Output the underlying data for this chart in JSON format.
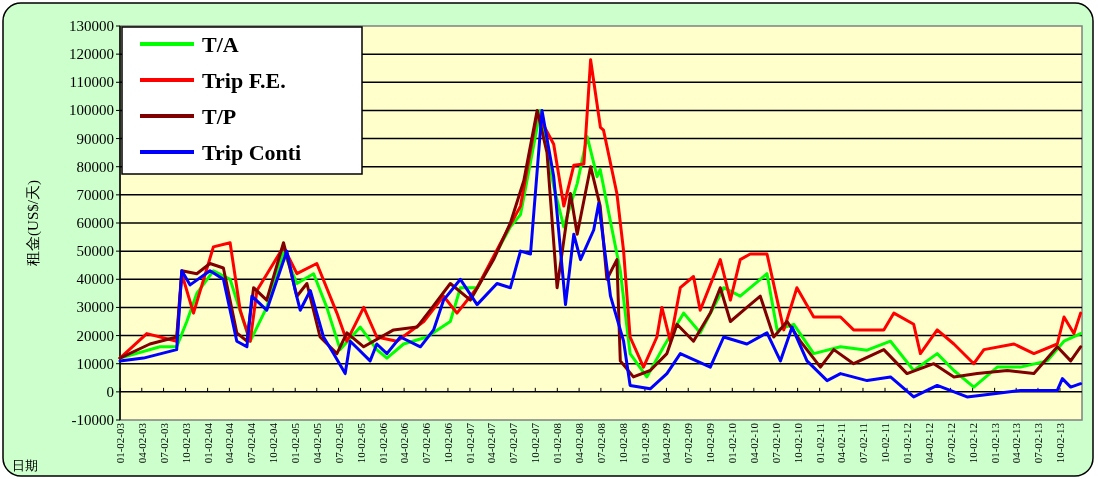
{
  "chart_data": {
    "type": "line",
    "ylabel": "租金(US$/天)",
    "xlabel": "日期",
    "xlim": [
      "2003-01-01",
      "2014-01-02"
    ],
    "xticks": [
      {
        "value": "2003-01-02",
        "label": "01-02-03"
      },
      {
        "value": "2003-04-02",
        "label": "04-02-03"
      },
      {
        "value": "2003-07-02",
        "label": "07-02-03"
      },
      {
        "value": "2003-10-02",
        "label": "10-02-03"
      },
      {
        "value": "2004-01-02",
        "label": "01-02-04"
      },
      {
        "value": "2004-04-02",
        "label": "04-02-04"
      },
      {
        "value": "2004-07-02",
        "label": "07-02-04"
      },
      {
        "value": "2004-10-02",
        "label": "10-02-04"
      },
      {
        "value": "2005-01-02",
        "label": "01-02-05"
      },
      {
        "value": "2005-04-02",
        "label": "04-02-05"
      },
      {
        "value": "2005-07-02",
        "label": "07-02-05"
      },
      {
        "value": "2005-10-02",
        "label": "10-02-05"
      },
      {
        "value": "2006-01-02",
        "label": "01-02-06"
      },
      {
        "value": "2006-04-02",
        "label": "04-02-06"
      },
      {
        "value": "2006-07-02",
        "label": "07-02-06"
      },
      {
        "value": "2006-10-02",
        "label": "10-02-06"
      },
      {
        "value": "2007-01-02",
        "label": "01-02-07"
      },
      {
        "value": "2007-04-02",
        "label": "04-02-07"
      },
      {
        "value": "2007-07-02",
        "label": "07-02-07"
      },
      {
        "value": "2007-10-02",
        "label": "10-02-07"
      },
      {
        "value": "2008-01-02",
        "label": "01-02-08"
      },
      {
        "value": "2008-04-02",
        "label": "04-02-08"
      },
      {
        "value": "2008-07-02",
        "label": "07-02-08"
      },
      {
        "value": "2008-10-02",
        "label": "10-02-08"
      },
      {
        "value": "2009-01-02",
        "label": "01-02-09"
      },
      {
        "value": "2009-04-02",
        "label": "04-02-09"
      },
      {
        "value": "2009-07-02",
        "label": "07-02-09"
      },
      {
        "value": "2009-10-02",
        "label": "10-02-09"
      },
      {
        "value": "2010-01-02",
        "label": "01-02-10"
      },
      {
        "value": "2010-04-02",
        "label": "04-02-10"
      },
      {
        "value": "2010-07-02",
        "label": "07-02-10"
      },
      {
        "value": "2010-10-02",
        "label": "10-02-10"
      },
      {
        "value": "2011-01-02",
        "label": "01-02-11"
      },
      {
        "value": "2011-04-02",
        "label": "04-02-11"
      },
      {
        "value": "2011-07-02",
        "label": "07-02-11"
      },
      {
        "value": "2011-10-02",
        "label": "10-02-11"
      },
      {
        "value": "2012-01-02",
        "label": "01-02-12"
      },
      {
        "value": "2012-04-02",
        "label": "04-02-12"
      },
      {
        "value": "2012-07-02",
        "label": "07-02-12"
      },
      {
        "value": "2012-10-02",
        "label": "10-02-12"
      },
      {
        "value": "2013-01-02",
        "label": "01-02-13"
      },
      {
        "value": "2013-04-02",
        "label": "04-02-13"
      },
      {
        "value": "2013-07-02",
        "label": "07-02-13"
      },
      {
        "value": "2013-10-02",
        "label": "10-02-13"
      }
    ],
    "ylim": [
      -10000,
      130000
    ],
    "yticks": [
      -10000,
      0,
      10000,
      20000,
      30000,
      40000,
      50000,
      60000,
      70000,
      80000,
      90000,
      100000,
      110000,
      120000,
      130000
    ],
    "grid": "y",
    "legend": "top left",
    "marker": "none",
    "line_style": "solid",
    "series": [
      {
        "name": "T/A",
        "color": "#00ff00",
        "x": [
          "2003-01-01",
          "2003-06-17",
          "2003-08-26",
          "2003-10-07",
          "2003-11-18",
          "2004-01-26",
          "2004-04-05",
          "2004-05-31",
          "2004-06-28",
          "2004-09-05",
          "2004-11-14",
          "2005-01-09",
          "2005-03-20",
          "2005-05-14",
          "2005-07-09",
          "2005-10-01",
          "2005-12-09",
          "2006-01-20",
          "2006-03-31",
          "2006-07-06",
          "2006-10-12",
          "2006-11-23",
          "2007-02-01",
          "2007-06-20",
          "2007-08-01",
          "2007-10-23",
          "2007-12-18",
          "2008-01-29",
          "2008-03-25",
          "2008-05-06",
          "2008-06-16",
          "2008-06-29",
          "2008-08-10",
          "2008-09-21",
          "2008-11-01",
          "2009-01-10",
          "2009-03-21",
          "2009-06-13",
          "2009-08-21",
          "2009-11-27",
          "2010-02-04",
          "2010-04-29",
          "2010-05-27",
          "2010-07-08",
          "2010-09-16",
          "2010-12-08",
          "2011-03-30",
          "2011-07-19",
          "2011-10-25",
          "2012-01-30",
          "2012-05-07",
          "2012-07-16",
          "2012-10-07",
          "2013-01-13",
          "2013-04-20",
          "2013-08-10",
          "2013-10-19",
          "2013-12-27"
        ],
        "values": [
          12000,
          16000,
          16000,
          25000,
          35000,
          43000,
          40000,
          25000,
          18000,
          30000,
          50000,
          38500,
          42000,
          30000,
          15000,
          23000,
          15000,
          12000,
          17000,
          19500,
          25000,
          37000,
          37000,
          58600,
          63000,
          100000,
          73000,
          58600,
          74000,
          90700,
          76500,
          79000,
          61000,
          43000,
          13600,
          5300,
          16000,
          28000,
          21000,
          37000,
          34000,
          40000,
          42000,
          22000,
          24000,
          13600,
          16000,
          14800,
          18000,
          7600,
          13600,
          7600,
          1700,
          8800,
          8800,
          11000,
          18000,
          20700
        ]
      },
      {
        "name": "Trip F.E.",
        "color": "#ff0000",
        "x": [
          "2003-01-01",
          "2003-04-23",
          "2003-08-26",
          "2003-09-16",
          "2003-11-04",
          "2004-01-26",
          "2004-04-05",
          "2004-05-17",
          "2004-06-28",
          "2004-07-26",
          "2004-11-14",
          "2005-01-09",
          "2005-04-02",
          "2005-06-25",
          "2005-08-06",
          "2005-10-15",
          "2005-12-09",
          "2006-03-03",
          "2006-06-23",
          "2006-09-14",
          "2006-11-09",
          "2007-02-01",
          "2007-05-23",
          "2007-08-01",
          "2007-10-10",
          "2007-12-18",
          "2008-01-29",
          "2008-03-11",
          "2008-04-22",
          "2008-05-20",
          "2008-06-30",
          "2008-07-13",
          "2008-09-07",
          "2008-10-05",
          "2008-11-01",
          "2008-12-27",
          "2009-02-21",
          "2009-03-14",
          "2009-04-18",
          "2009-05-30",
          "2009-07-24",
          "2009-08-21",
          "2009-11-13",
          "2009-12-25",
          "2010-02-04",
          "2010-03-18",
          "2010-05-27",
          "2010-08-05",
          "2010-09-29",
          "2010-12-08",
          "2011-03-30",
          "2011-05-24",
          "2011-09-27",
          "2011-11-08",
          "2012-01-30",
          "2012-02-27",
          "2012-05-07",
          "2012-07-16",
          "2012-10-07",
          "2012-11-18",
          "2013-03-24",
          "2013-06-15",
          "2013-09-21",
          "2013-10-19",
          "2013-11-29",
          "2013-12-27"
        ],
        "values": [
          12000,
          20700,
          18000,
          42000,
          28000,
          51500,
          53000,
          29000,
          18000,
          36000,
          51500,
          42000,
          45600,
          28000,
          18000,
          30000,
          19500,
          18000,
          25000,
          34000,
          28000,
          37000,
          55000,
          66000,
          99000,
          88000,
          66000,
          80500,
          81000,
          118000,
          94000,
          93000,
          70500,
          50000,
          19500,
          8800,
          19500,
          30000,
          18000,
          37000,
          41000,
          29000,
          47000,
          32600,
          47000,
          49000,
          49000,
          22000,
          37000,
          26600,
          26600,
          22000,
          22000,
          28000,
          24000,
          13600,
          22000,
          17000,
          10000,
          15000,
          17000,
          13600,
          17000,
          26600,
          20700,
          28000
        ]
      },
      {
        "name": "T/P",
        "color": "#800000",
        "x": [
          "2003-01-01",
          "2003-05-06",
          "2003-08-26",
          "2003-09-16",
          "2003-11-18",
          "2004-01-12",
          "2004-03-08",
          "2004-05-03",
          "2004-06-14",
          "2004-07-12",
          "2004-09-05",
          "2004-11-14",
          "2005-01-09",
          "2005-02-20",
          "2005-04-16",
          "2005-06-25",
          "2005-08-06",
          "2005-10-15",
          "2006-02-17",
          "2006-05-26",
          "2006-07-20",
          "2006-10-12",
          "2007-01-04",
          "2007-04-11",
          "2007-06-20",
          "2007-08-15",
          "2007-10-10",
          "2007-11-20",
          "2008-01-01",
          "2008-02-26",
          "2008-03-25",
          "2008-05-20",
          "2008-06-29",
          "2008-07-27",
          "2008-09-07",
          "2008-09-21",
          "2008-11-15",
          "2009-01-24",
          "2009-04-04",
          "2009-05-16",
          "2009-07-24",
          "2009-10-02",
          "2009-11-13",
          "2009-12-25",
          "2010-03-04",
          "2010-04-29",
          "2010-06-24",
          "2010-08-19",
          "2010-10-13",
          "2011-01-05",
          "2011-03-02",
          "2011-05-24",
          "2011-09-27",
          "2012-01-02",
          "2012-04-23",
          "2012-07-16",
          "2012-10-21",
          "2013-02-24",
          "2013-06-15",
          "2013-09-21",
          "2013-11-16",
          "2013-12-27"
        ],
        "values": [
          12000,
          17000,
          19500,
          43000,
          42000,
          45600,
          44000,
          21000,
          18000,
          37000,
          32600,
          53000,
          34000,
          38500,
          19500,
          13600,
          21000,
          16000,
          22000,
          23000,
          29000,
          38500,
          32600,
          47000,
          60000,
          75000,
          100000,
          85000,
          37000,
          70500,
          56000,
          80000,
          66000,
          40000,
          47000,
          11000,
          5300,
          7600,
          13600,
          24000,
          18000,
          28000,
          37000,
          25000,
          30000,
          34000,
          19500,
          25000,
          18000,
          8800,
          15000,
          10000,
          15000,
          6500,
          10000,
          5300,
          6500,
          7600,
          6500,
          16000,
          11000,
          16000
        ]
      },
      {
        "name": "Trip Conti",
        "color": "#0000ff",
        "x": [
          "2003-01-01",
          "2003-04-09",
          "2003-08-26",
          "2003-09-16",
          "2003-10-21",
          "2004-01-12",
          "2004-03-08",
          "2004-05-03",
          "2004-06-14",
          "2004-07-05",
          "2004-09-05",
          "2004-11-28",
          "2005-01-02",
          "2005-01-23",
          "2005-03-06",
          "2005-04-30",
          "2005-06-11",
          "2005-07-30",
          "2005-08-20",
          "2005-11-11",
          "2005-12-09",
          "2006-01-20",
          "2006-03-17",
          "2006-06-09",
          "2006-08-03",
          "2006-09-14",
          "2006-11-23",
          "2007-02-01",
          "2007-04-25",
          "2007-06-20",
          "2007-08-01",
          "2007-09-12",
          "2007-10-30",
          "2007-12-18",
          "2008-02-05",
          "2008-03-11",
          "2008-04-08",
          "2008-06-02",
          "2008-06-23",
          "2008-08-11",
          "2008-10-05",
          "2008-11-01",
          "2009-01-24",
          "2009-04-04",
          "2009-05-30",
          "2009-10-02",
          "2009-11-27",
          "2010-03-04",
          "2010-05-27",
          "2010-07-22",
          "2010-09-09",
          "2010-11-10",
          "2011-02-02",
          "2011-03-30",
          "2011-07-19",
          "2011-10-25",
          "2012-01-30",
          "2012-05-07",
          "2012-09-09",
          "2012-12-30",
          "2013-04-20",
          "2013-09-21",
          "2013-10-12",
          "2013-11-16",
          "2013-12-27"
        ],
        "values": [
          11000,
          12000,
          15000,
          43000,
          38000,
          43000,
          40000,
          18000,
          16000,
          34000,
          29000,
          50000,
          36000,
          29000,
          36000,
          19500,
          13600,
          6500,
          18000,
          11000,
          17000,
          13600,
          19500,
          16000,
          22000,
          32600,
          40000,
          31000,
          38500,
          37000,
          50000,
          49000,
          100000,
          76500,
          31000,
          56000,
          47000,
          57500,
          67000,
          34000,
          18000,
          2300,
          1100,
          6500,
          13600,
          8800,
          19500,
          17000,
          21000,
          11000,
          23000,
          11000,
          4000,
          6500,
          4000,
          5300,
          -1800,
          2300,
          -1800,
          -700,
          500,
          500,
          4700,
          1700,
          2900
        ]
      }
    ]
  }
}
